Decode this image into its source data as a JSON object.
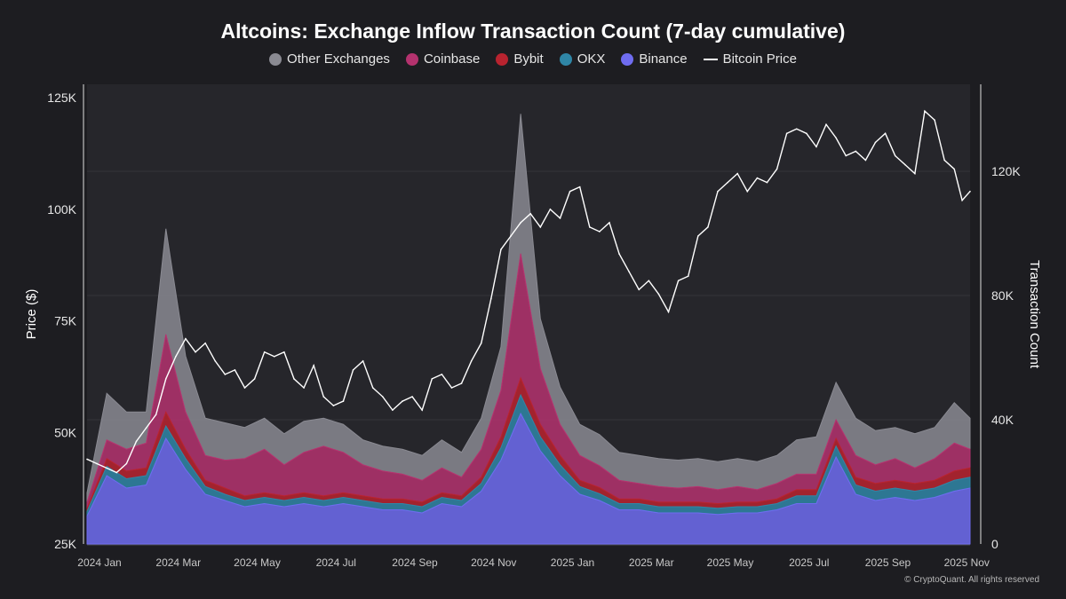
{
  "chart_data": {
    "type": "area",
    "title": "Altcoins: Exchange Inflow Transaction Count (7-day cumulative)",
    "ylabel": "Price ($)",
    "y2label": "Transaction Count",
    "ylim": [
      25000,
      128000
    ],
    "y2lim": [
      0,
      148000
    ],
    "yticks": [
      "25K",
      "50K",
      "75K",
      "100K",
      "125K"
    ],
    "yticks_values": [
      25000,
      50000,
      75000,
      100000,
      125000
    ],
    "y2ticks": [
      "0",
      "40K",
      "80K",
      "120K"
    ],
    "y2ticks_values": [
      0,
      40000,
      80000,
      120000
    ],
    "xticks": [
      "2024 Jan",
      "2024 Mar",
      "2024 May",
      "2024 Jul",
      "2024 Sep",
      "2024 Nov",
      "2025 Jan",
      "2025 Mar",
      "2025 May",
      "2025 Jul",
      "2025 Sep",
      "2025 Nov"
    ],
    "xticks_values": [
      0.0,
      2.0,
      4.0,
      6.0,
      8.0,
      10.0,
      12.0,
      14.0,
      16.0,
      18.0,
      20.0,
      22.0
    ],
    "x_unit": "months since 2024-01-01",
    "x_range": [
      0,
      22.4
    ],
    "legend_position": "top-center",
    "x": [
      0.0,
      0.5,
      1.0,
      1.5,
      2.0,
      2.5,
      3.0,
      3.5,
      4.0,
      4.5,
      5.0,
      5.5,
      6.0,
      6.5,
      7.0,
      7.5,
      8.0,
      8.5,
      9.0,
      9.5,
      10.0,
      10.5,
      11.0,
      11.5,
      12.0,
      12.5,
      13.0,
      13.5,
      14.0,
      14.5,
      15.0,
      15.5,
      16.0,
      16.5,
      17.0,
      17.5,
      18.0,
      18.5,
      19.0,
      19.5,
      20.0,
      20.5,
      21.0,
      21.5,
      22.0,
      22.4
    ],
    "series": [
      {
        "name": "Binance",
        "color": "#6f6cf0",
        "values": [
          9000,
          22000,
          18000,
          19000,
          34000,
          24000,
          16000,
          14000,
          12000,
          13000,
          12000,
          13000,
          12000,
          13000,
          12000,
          11000,
          11000,
          10000,
          13000,
          12000,
          17000,
          27000,
          42000,
          30000,
          22000,
          16000,
          14000,
          11000,
          11000,
          10000,
          10000,
          10000,
          9500,
          10000,
          10000,
          11000,
          13000,
          13000,
          28000,
          16000,
          14000,
          15000,
          14000,
          15000,
          17000,
          18000
        ]
      },
      {
        "name": "OKX",
        "color": "#2f86a6",
        "values": [
          1500,
          3000,
          3000,
          3000,
          4000,
          3500,
          2500,
          2000,
          2000,
          2000,
          2000,
          2000,
          2000,
          2000,
          2000,
          2000,
          2000,
          2000,
          2000,
          2000,
          2500,
          4000,
          6000,
          4500,
          3500,
          2500,
          2200,
          2000,
          2000,
          2000,
          2000,
          2000,
          2000,
          2000,
          2000,
          2000,
          2500,
          2500,
          3500,
          3000,
          3000,
          3000,
          3000,
          3000,
          3500,
          3500
        ]
      },
      {
        "name": "Bybit",
        "color": "#b8232f",
        "values": [
          1000,
          2500,
          2500,
          2500,
          4500,
          3000,
          2000,
          2000,
          1500,
          1500,
          1500,
          1500,
          1500,
          1500,
          1500,
          1500,
          1500,
          1500,
          1500,
          1500,
          2000,
          3500,
          5500,
          4000,
          3000,
          2000,
          2000,
          1500,
          1500,
          1500,
          1500,
          1500,
          1500,
          1500,
          1500,
          1500,
          2000,
          2000,
          2500,
          2500,
          2500,
          2500,
          2500,
          2500,
          3000,
          3000
        ]
      },
      {
        "name": "Coinbase",
        "color": "#b4326e",
        "values": [
          2000,
          6000,
          7000,
          8000,
          25000,
          12000,
          8000,
          9000,
          12000,
          14000,
          10000,
          13000,
          16000,
          13000,
          10000,
          9000,
          8000,
          7000,
          8000,
          6000,
          9000,
          15000,
          40000,
          18000,
          10000,
          8000,
          7000,
          6000,
          5000,
          5000,
          4500,
          5000,
          4500,
          5000,
          4000,
          5000,
          5000,
          5000,
          6000,
          7000,
          6000,
          7000,
          5000,
          7000,
          9000,
          6000
        ]
      },
      {
        "name": "Other Exchanges",
        "color": "#8a8a92",
        "values": [
          3000,
          15000,
          12000,
          10000,
          34000,
          18000,
          12000,
          12000,
          10000,
          10000,
          10000,
          10000,
          9000,
          9000,
          8000,
          8000,
          8000,
          8000,
          9000,
          8000,
          10000,
          14000,
          45000,
          16000,
          12000,
          10000,
          10000,
          9000,
          9000,
          9000,
          9000,
          9000,
          9000,
          9000,
          9000,
          9000,
          11000,
          12000,
          12000,
          12000,
          11000,
          10000,
          11000,
          10000,
          13000,
          10000
        ]
      },
      {
        "name": "Bitcoin Price",
        "color": "#ffffff",
        "line": true,
        "x": [
          0.0,
          0.25,
          0.5,
          0.75,
          1.0,
          1.25,
          1.5,
          1.75,
          2.0,
          2.25,
          2.5,
          2.75,
          3.0,
          3.25,
          3.5,
          3.75,
          4.0,
          4.25,
          4.5,
          4.75,
          5.0,
          5.25,
          5.5,
          5.75,
          6.0,
          6.25,
          6.5,
          6.75,
          7.0,
          7.25,
          7.5,
          7.75,
          8.0,
          8.25,
          8.5,
          8.75,
          9.0,
          9.25,
          9.5,
          9.75,
          10.0,
          10.25,
          10.5,
          10.75,
          11.0,
          11.25,
          11.5,
          11.75,
          12.0,
          12.25,
          12.5,
          12.75,
          13.0,
          13.25,
          13.5,
          13.75,
          14.0,
          14.25,
          14.5,
          14.75,
          15.0,
          15.25,
          15.5,
          15.75,
          16.0,
          16.25,
          16.5,
          16.75,
          17.0,
          17.25,
          17.5,
          17.75,
          18.0,
          18.25,
          18.5,
          18.75,
          19.0,
          19.25,
          19.5,
          19.75,
          20.0,
          20.25,
          20.5,
          20.75,
          21.0,
          21.25,
          21.5,
          21.75,
          22.0,
          22.2,
          22.4
        ],
        "values": [
          44000,
          43000,
          42000,
          41000,
          43000,
          48000,
          51000,
          54000,
          62000,
          67000,
          71000,
          68000,
          70000,
          66000,
          63000,
          64000,
          60000,
          62000,
          68000,
          67000,
          68000,
          62000,
          60000,
          65000,
          58000,
          56000,
          57000,
          64000,
          66000,
          60000,
          58000,
          55000,
          57000,
          58000,
          55000,
          62000,
          63000,
          60000,
          61000,
          66000,
          70000,
          80000,
          91000,
          94000,
          97000,
          99000,
          96000,
          100000,
          98000,
          104000,
          105000,
          96000,
          95000,
          97000,
          90000,
          86000,
          82000,
          84000,
          81000,
          77000,
          84000,
          85000,
          94000,
          96000,
          104000,
          106000,
          108000,
          104000,
          107000,
          106000,
          109000,
          117000,
          118000,
          117000,
          114000,
          119000,
          116000,
          112000,
          113000,
          111000,
          115000,
          117000,
          112000,
          110000,
          108000,
          122000,
          120000,
          111000,
          109000,
          102000,
          104000
        ]
      }
    ]
  },
  "footer": {
    "copyright": "© CryptoQuant. All rights reserved"
  }
}
